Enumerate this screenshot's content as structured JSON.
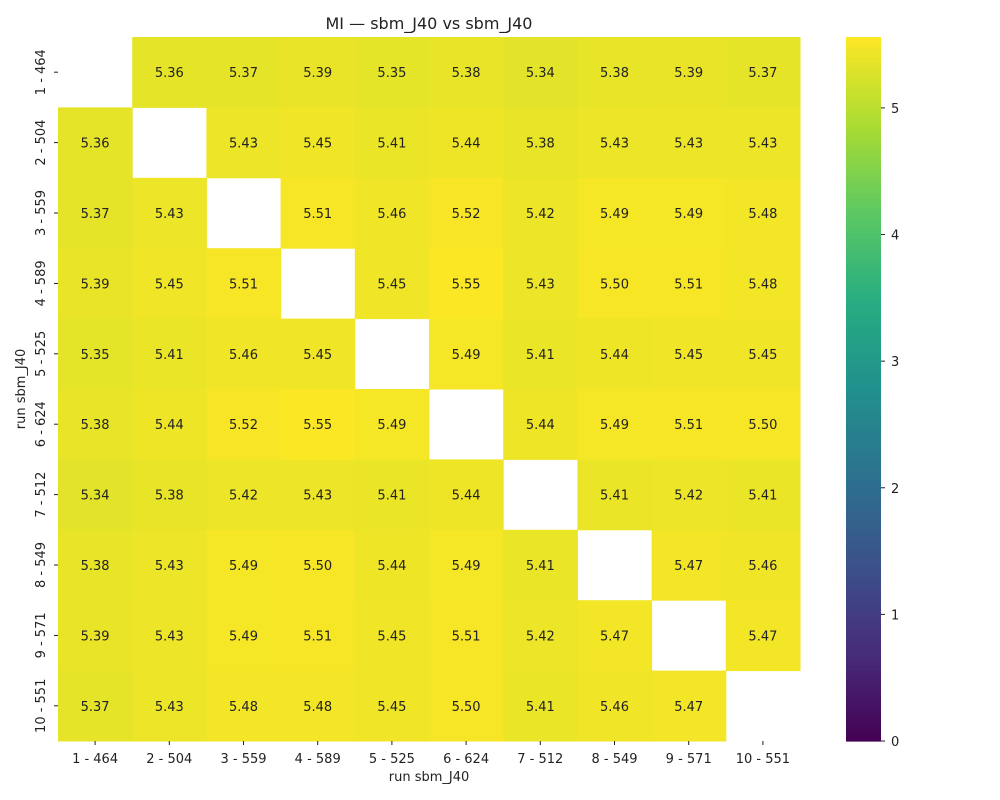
{
  "chart_data": {
    "type": "heatmap",
    "title": "MI — sbm_J40 vs sbm_J40",
    "xlabel": "run sbm_J40",
    "ylabel": "run sbm_J40",
    "x_categories": [
      "1 - 464",
      "2 - 504",
      "3 - 559",
      "4 - 589",
      "5 - 525",
      "6 - 624",
      "7 - 512",
      "8 - 549",
      "9 - 571",
      "10 - 551"
    ],
    "y_categories": [
      "1 - 464",
      "2 - 504",
      "3 - 559",
      "4 - 589",
      "5 - 525",
      "6 - 624",
      "7 - 512",
      "8 - 549",
      "9 - 571",
      "10 - 551"
    ],
    "values": [
      [
        null,
        5.36,
        5.37,
        5.39,
        5.35,
        5.38,
        5.34,
        5.38,
        5.39,
        5.37
      ],
      [
        5.36,
        null,
        5.43,
        5.45,
        5.41,
        5.44,
        5.38,
        5.43,
        5.43,
        5.43
      ],
      [
        5.37,
        5.43,
        null,
        5.51,
        5.46,
        5.52,
        5.42,
        5.49,
        5.49,
        5.48
      ],
      [
        5.39,
        5.45,
        5.51,
        null,
        5.45,
        5.55,
        5.43,
        5.5,
        5.51,
        5.48
      ],
      [
        5.35,
        5.41,
        5.46,
        5.45,
        null,
        5.49,
        5.41,
        5.44,
        5.45,
        5.45
      ],
      [
        5.38,
        5.44,
        5.52,
        5.55,
        5.49,
        null,
        5.44,
        5.49,
        5.51,
        5.5
      ],
      [
        5.34,
        5.38,
        5.42,
        5.43,
        5.41,
        5.44,
        null,
        5.41,
        5.42,
        5.41
      ],
      [
        5.38,
        5.43,
        5.49,
        5.5,
        5.44,
        5.49,
        5.41,
        null,
        5.47,
        5.46
      ],
      [
        5.39,
        5.43,
        5.49,
        5.51,
        5.45,
        5.51,
        5.42,
        5.47,
        null,
        5.47
      ],
      [
        5.37,
        5.43,
        5.48,
        5.48,
        5.45,
        5.5,
        5.41,
        5.46,
        5.47,
        null
      ]
    ],
    "colormap": "viridis",
    "color_range": [
      0,
      5.56
    ],
    "colorbar_ticks": [
      0,
      1,
      2,
      3,
      4,
      5
    ],
    "grid": false
  }
}
